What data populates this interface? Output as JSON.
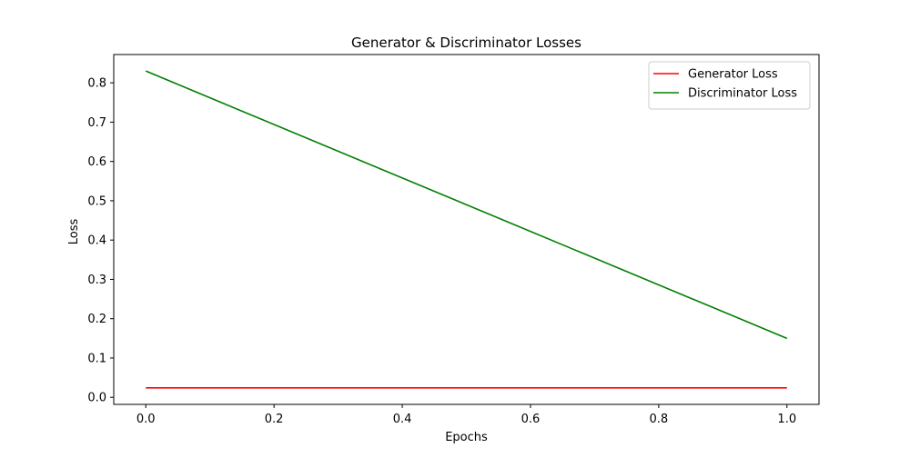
{
  "chart_data": {
    "type": "line",
    "title": "Generator & Discriminator Losses",
    "xlabel": "Epochs",
    "ylabel": "Loss",
    "xlim": [
      -0.05,
      1.05
    ],
    "ylim": [
      -0.018,
      0.872
    ],
    "x_ticks": [
      0.0,
      0.2,
      0.4,
      0.6,
      0.8,
      1.0
    ],
    "x_tick_labels": [
      "0.0",
      "0.2",
      "0.4",
      "0.6",
      "0.8",
      "1.0"
    ],
    "y_ticks": [
      0.0,
      0.1,
      0.2,
      0.3,
      0.4,
      0.5,
      0.6,
      0.7,
      0.8
    ],
    "y_tick_labels": [
      "0.0",
      "0.1",
      "0.2",
      "0.3",
      "0.4",
      "0.5",
      "0.6",
      "0.7",
      "0.8"
    ],
    "grid": false,
    "legend_position": "top-right",
    "series": [
      {
        "name": "Generator Loss",
        "color": "#ff0000",
        "x": [
          0.0,
          1.0
        ],
        "y": [
          0.024,
          0.024
        ]
      },
      {
        "name": "Discriminator Loss",
        "color": "#008000",
        "x": [
          0.0,
          1.0
        ],
        "y": [
          0.83,
          0.15
        ]
      }
    ]
  }
}
